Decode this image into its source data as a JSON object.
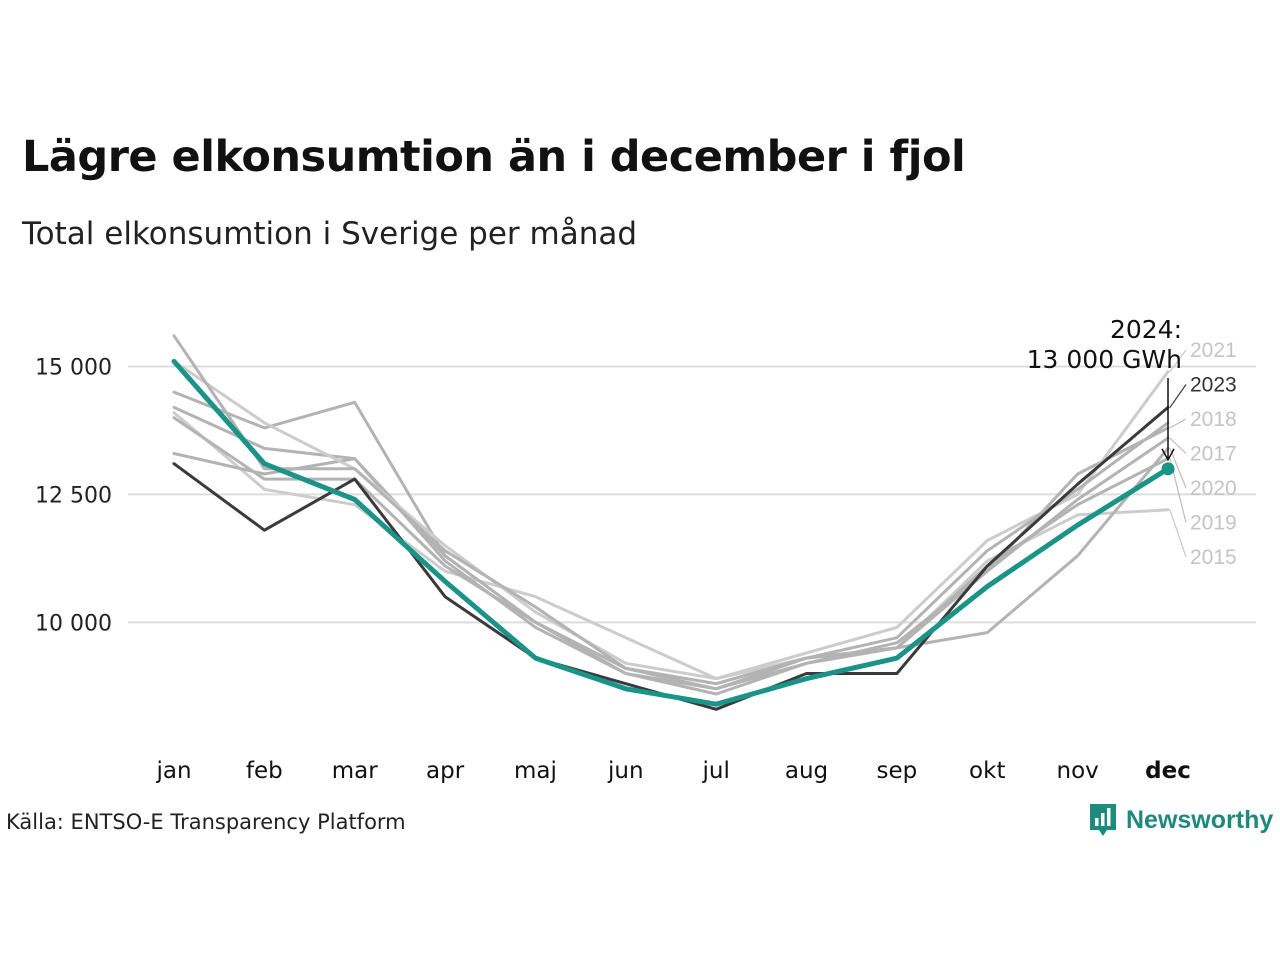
{
  "header": {
    "title": "Lägre elkonsumtion än i december i fjol",
    "subtitle": "Total elkonsumtion i Sverige per månad"
  },
  "footer": {
    "source": "Källa: ENTSO-E Transparency Platform",
    "brand": "Newsworthy"
  },
  "colors": {
    "highlight": "#1a9488",
    "previous_year": "#3a3a3a",
    "other_years": "#b3b3b3",
    "other_years_light": "#cccccc",
    "grid": "#dddddd",
    "brand": "#1e8a7c"
  },
  "chart_data": {
    "type": "line",
    "categories": [
      "jan",
      "feb",
      "mar",
      "apr",
      "maj",
      "jun",
      "jul",
      "aug",
      "sep",
      "okt",
      "nov",
      "dec"
    ],
    "highlight_category": "dec",
    "yticks": [
      10000,
      12500,
      15000
    ],
    "ytick_labels": [
      "10 000",
      "12 500",
      "15 000"
    ],
    "ylim": [
      7700,
      16300
    ],
    "grid": "horizontal",
    "annotation": {
      "line1": "2024:",
      "line2": "13 000 GWh",
      "series": "2024",
      "category": "dec"
    },
    "series": [
      {
        "name": "2015",
        "style": "light",
        "values": [
          14100,
          12600,
          12300,
          11000,
          10500,
          9700,
          8900,
          9300,
          9500,
          11200,
          12100,
          12200
        ]
      },
      {
        "name": "2019",
        "style": "grey",
        "values": [
          14000,
          12800,
          12800,
          11100,
          10000,
          9100,
          8800,
          9300,
          9500,
          11100,
          12300,
          13200
        ]
      },
      {
        "name": "2020",
        "style": "grey",
        "values": [
          13300,
          12900,
          13200,
          11200,
          9900,
          9000,
          8600,
          9200,
          9500,
          9800,
          11300,
          13400
        ]
      },
      {
        "name": "2017",
        "style": "grey",
        "values": [
          14200,
          13400,
          13200,
          11300,
          10000,
          9100,
          8700,
          9200,
          9600,
          11000,
          12400,
          13600
        ]
      },
      {
        "name": "2018",
        "style": "grey",
        "values": [
          14500,
          13800,
          14300,
          11300,
          10000,
          9000,
          8700,
          9300,
          9500,
          11000,
          12900,
          13800
        ]
      },
      {
        "name": "2021",
        "style": "light",
        "values": [
          15100,
          13900,
          13000,
          11500,
          10200,
          9200,
          8900,
          9400,
          9900,
          11600,
          12500,
          14900
        ]
      },
      {
        "name": "",
        "style": "grey",
        "values": [
          15600,
          13000,
          13000,
          11400,
          10300,
          9100,
          8800,
          9300,
          9700,
          11400,
          12600,
          13900
        ]
      },
      {
        "name": "2023",
        "style": "dark",
        "values": [
          13100,
          11800,
          12800,
          10500,
          9300,
          8800,
          8300,
          9000,
          9000,
          11100,
          12700,
          14200
        ]
      },
      {
        "name": "2024",
        "style": "highlight",
        "values": [
          15100,
          13100,
          12400,
          10800,
          9300,
          8700,
          8400,
          8900,
          9300,
          10700,
          11900,
          13000
        ]
      }
    ]
  }
}
